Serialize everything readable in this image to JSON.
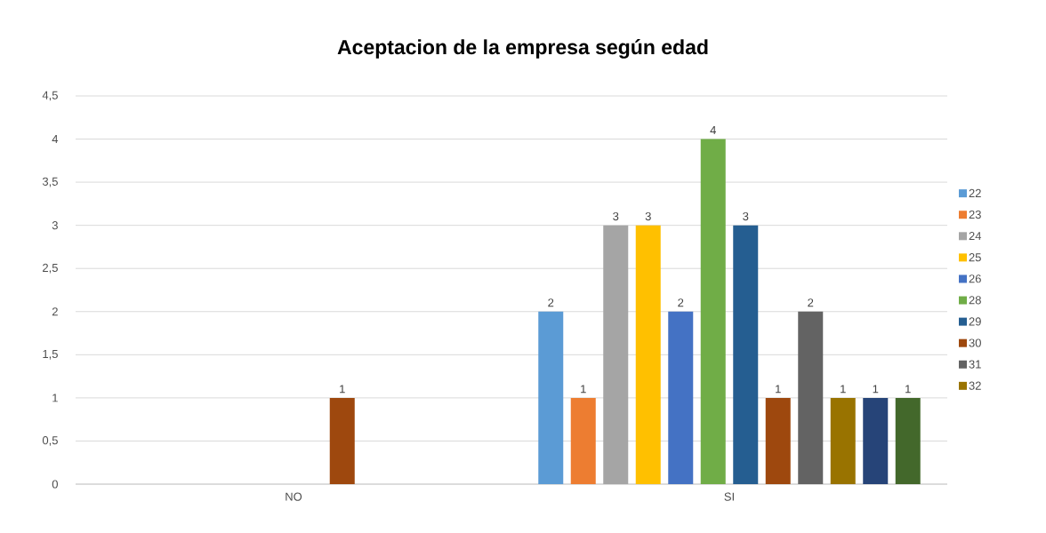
{
  "chart_data": {
    "type": "bar",
    "title": "Aceptacion de la empresa según edad",
    "categories": [
      "NO",
      "SI"
    ],
    "series": [
      {
        "name": "22",
        "color": "#5b9bd5",
        "values": [
          null,
          2
        ]
      },
      {
        "name": "23",
        "color": "#ed7d31",
        "values": [
          null,
          1
        ]
      },
      {
        "name": "24",
        "color": "#a5a5a5",
        "values": [
          null,
          3
        ]
      },
      {
        "name": "25",
        "color": "#ffc000",
        "values": [
          null,
          3
        ]
      },
      {
        "name": "26",
        "color": "#4472c4",
        "values": [
          null,
          2
        ]
      },
      {
        "name": "28",
        "color": "#70ad47",
        "values": [
          null,
          4
        ]
      },
      {
        "name": "29",
        "color": "#255e91",
        "values": [
          null,
          3
        ]
      },
      {
        "name": "30",
        "color": "#9e480e",
        "values": [
          1,
          1
        ]
      },
      {
        "name": "31",
        "color": "#636363",
        "values": [
          null,
          2
        ]
      },
      {
        "name": "32",
        "color": "#997300",
        "values": [
          null,
          1
        ]
      },
      {
        "color": "#264478",
        "values": [
          null,
          1
        ]
      },
      {
        "color": "#43682b",
        "values": [
          null,
          1
        ]
      }
    ],
    "ylim": [
      0,
      4.5
    ],
    "yticks": [
      0,
      {
        "value": 0.5,
        "label": "0,5"
      },
      1,
      {
        "value": 1.5,
        "label": "1,5"
      },
      2,
      {
        "value": 2.5,
        "label": "2,5"
      },
      3,
      {
        "value": 3.5,
        "label": "3,5"
      },
      4,
      {
        "value": 4.5,
        "label": "4,5"
      }
    ],
    "grid": "y",
    "legend": "right",
    "data_labels": true
  }
}
